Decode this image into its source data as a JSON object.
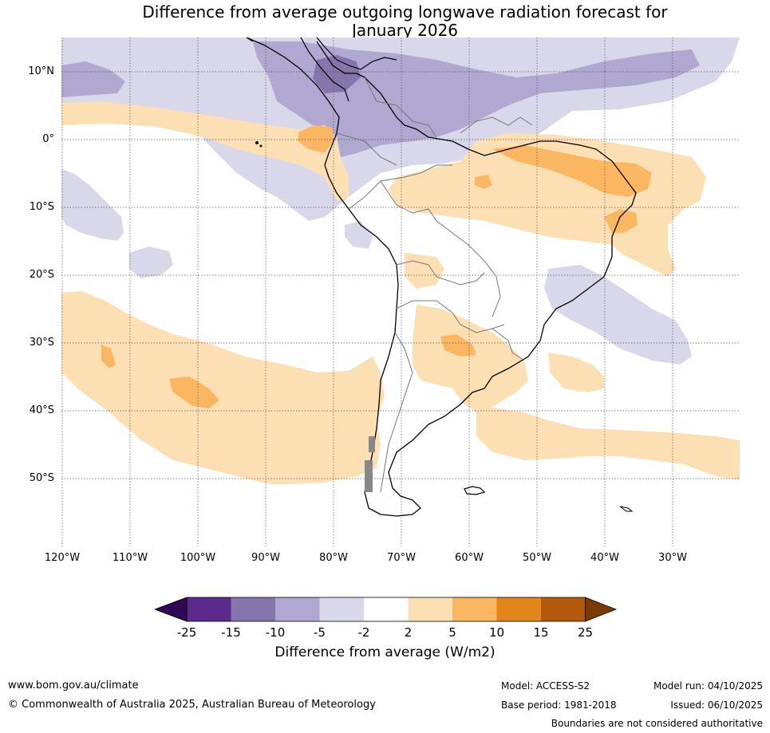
{
  "title_line1": "Difference from average outgoing longwave radiation forecast for",
  "title_line2": "January 2026",
  "latitudes": [
    "10°N",
    "0°",
    "10°S",
    "20°S",
    "30°S",
    "40°S",
    "50°S"
  ],
  "longitudes": [
    "120°W",
    "110°W",
    "100°W",
    "90°W",
    "80°W",
    "70°W",
    "60°W",
    "50°W",
    "40°W",
    "30°W"
  ],
  "colorbar": {
    "ticks": [
      "-25",
      "-15",
      "-10",
      "-5",
      "-2",
      "2",
      "5",
      "10",
      "15",
      "25"
    ],
    "colors": [
      "#2e0854",
      "#5b2a8a",
      "#8575ad",
      "#b0a8d1",
      "#d8d8ea",
      "#ffffff",
      "#fddfb4",
      "#fbb661",
      "#e3861a",
      "#b3590b",
      "#7a3a05"
    ],
    "title": "Difference from average (W/m2)"
  },
  "footer": {
    "website": "www.bom.gov.au/climate",
    "copyright": "© Commonwealth of Australia 2025, Australian Bureau of Meteorology",
    "model": "Model: ACCESS-S2",
    "model_run": "Model run: 04/10/2025",
    "base_period": "Base period: 1981-2018",
    "issued": "Issued: 06/10/2025",
    "disclaimer": "Boundaries are not considered authoritative"
  }
}
